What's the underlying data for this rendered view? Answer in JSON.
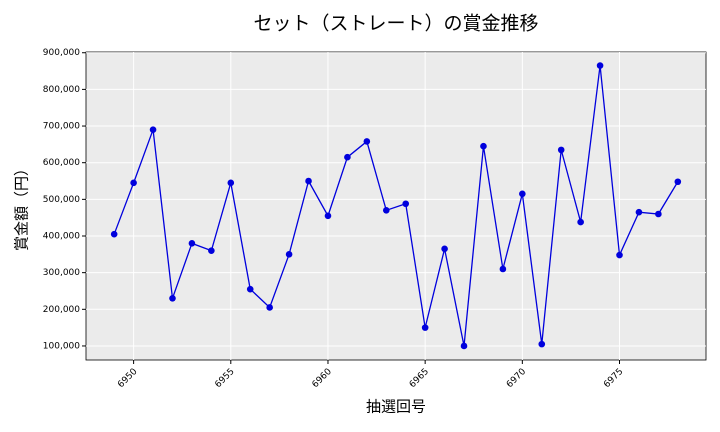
{
  "chart_data": {
    "type": "line",
    "title": "セット（ストレート）の賞金推移",
    "xlabel": "抽選回号",
    "ylabel": "賞金額（円）",
    "x": [
      6949,
      6950,
      6951,
      6952,
      6953,
      6954,
      6955,
      6956,
      6957,
      6958,
      6959,
      6960,
      6961,
      6962,
      6963,
      6964,
      6965,
      6966,
      6967,
      6968,
      6969,
      6970,
      6971,
      6972,
      6973,
      6974,
      6975,
      6976,
      6977,
      6978
    ],
    "series": [
      {
        "name": "賞金",
        "color": "#0000dd",
        "values": [
          405000,
          545000,
          690000,
          230000,
          380000,
          360000,
          545000,
          255000,
          205000,
          350000,
          550000,
          455000,
          615000,
          658000,
          470000,
          488000,
          150000,
          365000,
          100000,
          645000,
          310000,
          515000,
          105000,
          635000,
          438000,
          865000,
          348000,
          465000,
          460000,
          548000
        ]
      }
    ],
    "xlim": [
      6947.55,
      6979.45
    ],
    "xticks": [
      6950,
      6955,
      6960,
      6965,
      6970,
      6975
    ],
    "ylim": [
      61700,
      902000
    ],
    "yticks": [
      {
        "value": 100000,
        "label": "100,000"
      },
      {
        "value": 200000,
        "label": "200,000"
      },
      {
        "value": 300000,
        "label": "300,000"
      },
      {
        "value": 400000,
        "label": "400,000"
      },
      {
        "value": 500000,
        "label": "500,000"
      },
      {
        "value": 600000,
        "label": "600,000"
      },
      {
        "value": 700000,
        "label": "700,000"
      },
      {
        "value": 800000,
        "label": "800,000"
      },
      {
        "value": 900000,
        "label": "900,000"
      }
    ],
    "grid": true
  }
}
